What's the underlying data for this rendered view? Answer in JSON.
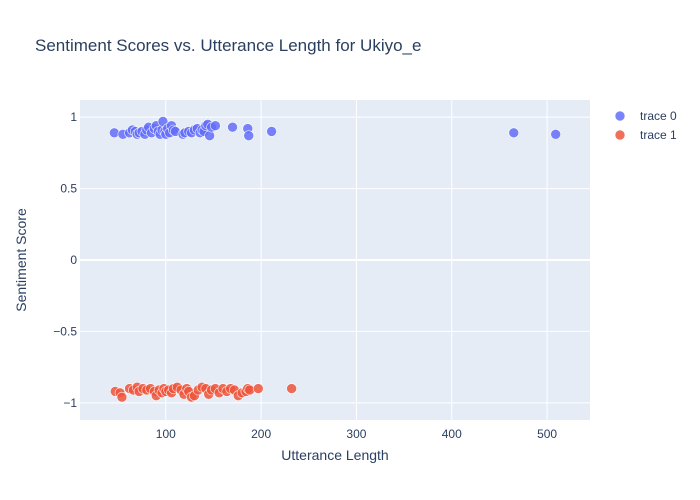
{
  "chart_data": {
    "type": "scatter",
    "title": "Sentiment Scores vs. Utterance Length for Ukiyo_e",
    "xlabel": "Utterance Length",
    "ylabel": "Sentiment Score",
    "xlim": [
      10,
      545
    ],
    "ylim": [
      -1.12,
      1.12
    ],
    "x_ticks": [
      100,
      200,
      300,
      400,
      500
    ],
    "x_tick_labels": [
      "100",
      "200",
      "300",
      "400",
      "500"
    ],
    "y_ticks": [
      1,
      0.5,
      0,
      -0.5,
      -1
    ],
    "y_tick_labels": [
      "1",
      "0.5",
      "0",
      "−0.5",
      "−1"
    ],
    "grid": true,
    "legend_position": "top-right",
    "series": [
      {
        "name": "trace 0",
        "color": "#636efa",
        "points": [
          [
            46,
            0.89
          ],
          [
            55,
            0.88
          ],
          [
            62,
            0.89
          ],
          [
            65,
            0.91
          ],
          [
            68,
            0.9
          ],
          [
            70,
            0.88
          ],
          [
            72,
            0.89
          ],
          [
            75,
            0.9
          ],
          [
            78,
            0.88
          ],
          [
            80,
            0.91
          ],
          [
            82,
            0.93
          ],
          [
            85,
            0.89
          ],
          [
            88,
            0.92
          ],
          [
            90,
            0.94
          ],
          [
            92,
            0.9
          ],
          [
            94,
            0.88
          ],
          [
            96,
            0.91
          ],
          [
            97,
            0.97
          ],
          [
            99,
            0.9
          ],
          [
            100,
            0.88
          ],
          [
            102,
            0.92
          ],
          [
            104,
            0.89
          ],
          [
            106,
            0.94
          ],
          [
            108,
            0.91
          ],
          [
            110,
            0.9
          ],
          [
            118,
            0.88
          ],
          [
            120,
            0.89
          ],
          [
            124,
            0.9
          ],
          [
            127,
            0.89
          ],
          [
            130,
            0.91
          ],
          [
            133,
            0.92
          ],
          [
            136,
            0.89
          ],
          [
            138,
            0.91
          ],
          [
            140,
            0.9
          ],
          [
            142,
            0.94
          ],
          [
            144,
            0.95
          ],
          [
            146,
            0.87
          ],
          [
            148,
            0.93
          ],
          [
            152,
            0.94
          ],
          [
            170,
            0.93
          ],
          [
            186,
            0.92
          ],
          [
            187,
            0.87
          ],
          [
            211,
            0.9
          ],
          [
            465,
            0.89
          ],
          [
            509,
            0.88
          ]
        ]
      },
      {
        "name": "trace 1",
        "color": "#ef553b",
        "points": [
          [
            47,
            -0.92
          ],
          [
            52,
            -0.93
          ],
          [
            54,
            -0.96
          ],
          [
            62,
            -0.9
          ],
          [
            66,
            -0.91
          ],
          [
            70,
            -0.89
          ],
          [
            72,
            -0.92
          ],
          [
            76,
            -0.9
          ],
          [
            80,
            -0.91
          ],
          [
            84,
            -0.9
          ],
          [
            88,
            -0.92
          ],
          [
            90,
            -0.95
          ],
          [
            93,
            -0.91
          ],
          [
            96,
            -0.93
          ],
          [
            98,
            -0.9
          ],
          [
            100,
            -0.92
          ],
          [
            103,
            -0.91
          ],
          [
            106,
            -0.93
          ],
          [
            108,
            -0.9
          ],
          [
            112,
            -0.89
          ],
          [
            116,
            -0.91
          ],
          [
            119,
            -0.94
          ],
          [
            122,
            -0.9
          ],
          [
            124,
            -0.92
          ],
          [
            127,
            -0.96
          ],
          [
            130,
            -0.95
          ],
          [
            134,
            -0.91
          ],
          [
            138,
            -0.89
          ],
          [
            142,
            -0.9
          ],
          [
            145,
            -0.94
          ],
          [
            148,
            -0.91
          ],
          [
            152,
            -0.9
          ],
          [
            156,
            -0.93
          ],
          [
            160,
            -0.9
          ],
          [
            164,
            -0.92
          ],
          [
            168,
            -0.9
          ],
          [
            172,
            -0.91
          ],
          [
            176,
            -0.95
          ],
          [
            180,
            -0.93
          ],
          [
            184,
            -0.92
          ],
          [
            186,
            -0.9
          ],
          [
            188,
            -0.91
          ],
          [
            197,
            -0.9
          ],
          [
            232,
            -0.9
          ]
        ]
      }
    ]
  }
}
